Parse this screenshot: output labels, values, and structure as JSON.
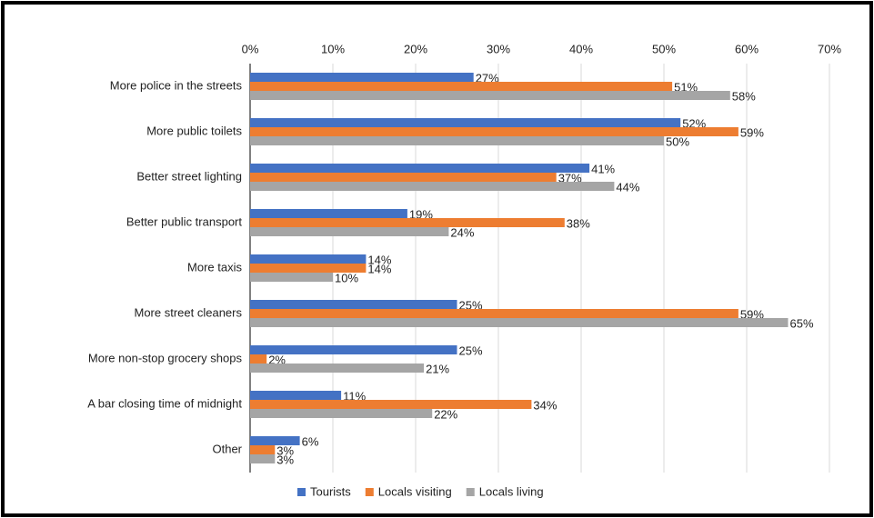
{
  "chart_data": {
    "type": "bar",
    "orientation": "horizontal",
    "categories": [
      "More police in the streets",
      "More public toilets",
      "Better street lighting",
      "Better public transport",
      "More taxis",
      "More street cleaners",
      "More non-stop grocery shops",
      "A bar closing time of midnight",
      "Other"
    ],
    "series": [
      {
        "name": "Tourists",
        "color": "#4472c4",
        "values": [
          27,
          52,
          41,
          19,
          14,
          25,
          25,
          11,
          6
        ],
        "value_labels": [
          "27%",
          "52%",
          "41%",
          "19%",
          "14%",
          "25%",
          "25%",
          "11%",
          "6%"
        ]
      },
      {
        "name": "Locals visiting",
        "color": "#ed7d31",
        "values": [
          51,
          59,
          37,
          38,
          14,
          59,
          2,
          34,
          3
        ],
        "value_labels": [
          "51%",
          "59%",
          "37%",
          "38%",
          "14%",
          "59%",
          "2%",
          "34%",
          "3%"
        ]
      },
      {
        "name": "Locals living",
        "color": "#a5a5a5",
        "values": [
          58,
          50,
          44,
          24,
          10,
          65,
          21,
          22,
          3
        ],
        "value_labels": [
          "58%",
          "50%",
          "44%",
          "24%",
          "10%",
          "65%",
          "21%",
          "22%",
          "3%"
        ]
      }
    ],
    "xlim": [
      0,
      70
    ],
    "xticks": [
      {
        "value": 0,
        "label": "0%"
      },
      {
        "value": 10,
        "label": "10%"
      },
      {
        "value": 20,
        "label": "20%"
      },
      {
        "value": 30,
        "label": "30%"
      },
      {
        "value": 40,
        "label": "40%"
      },
      {
        "value": 50,
        "label": "50%"
      },
      {
        "value": 60,
        "label": "60%"
      },
      {
        "value": 70,
        "label": "70%"
      }
    ],
    "grid": true,
    "legend": "bottom"
  }
}
